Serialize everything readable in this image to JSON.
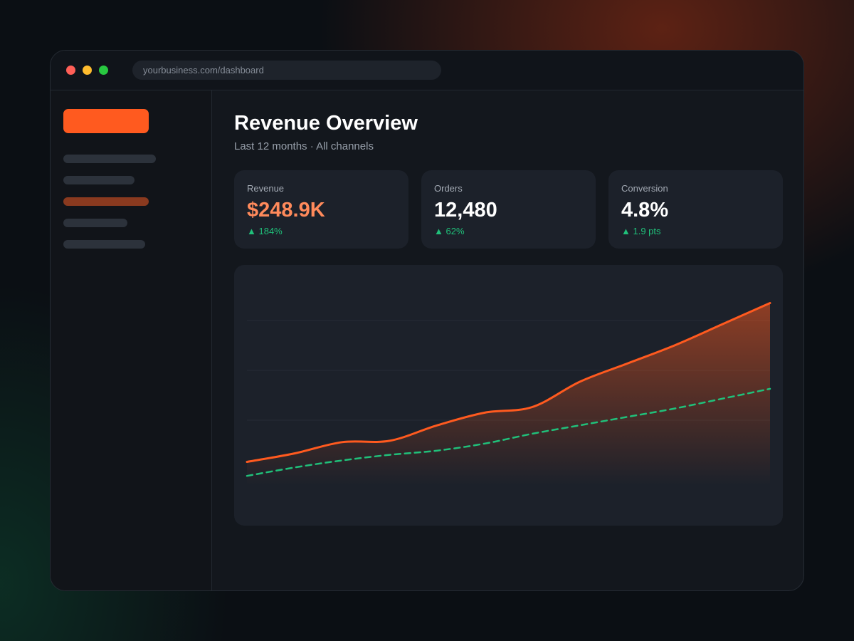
{
  "browser": {
    "url": "yourbusiness.com/dashboard"
  },
  "header": {
    "title": "Revenue Overview",
    "subtitle": "Last 12 months · All channels"
  },
  "kpis": [
    {
      "label": "Revenue",
      "value": "$248.9K",
      "delta": "▲ 184%"
    },
    {
      "label": "Orders",
      "value": "12,480",
      "delta": "▲ 62%"
    },
    {
      "label": "Conversion",
      "value": "4.8%",
      "delta": "▲ 1.9 pts"
    }
  ],
  "colors": {
    "accent": "#ff5a1f",
    "secondary": "#20c07a",
    "background": "#13171d",
    "card": "#1c212a"
  },
  "chart_data": {
    "type": "area",
    "x": [
      1,
      2,
      3,
      4,
      5,
      6,
      7,
      8,
      9,
      10,
      11,
      12
    ],
    "series": [
      {
        "values": [
          10,
          16,
          24,
          25,
          36,
          45,
          49,
          67,
          80,
          93,
          108,
          123
        ],
        "color": "#ff5a1f",
        "style": "solid-area"
      },
      {
        "values": [
          0,
          6,
          11,
          15,
          18,
          23,
          30,
          36,
          42,
          48,
          55,
          62
        ],
        "color": "#20c07a",
        "style": "dashed"
      }
    ],
    "ylim": [
      -7,
      140
    ],
    "grid": true
  }
}
